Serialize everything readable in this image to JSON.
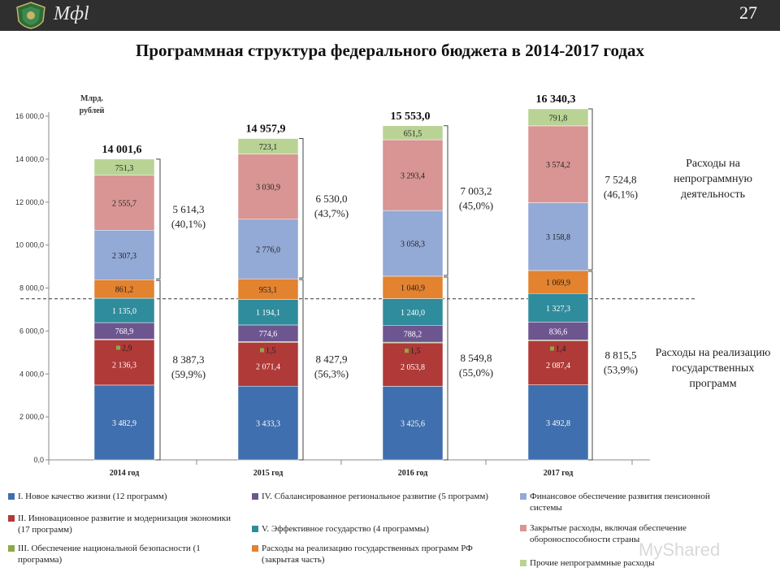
{
  "header": {
    "logo_text": "Мфl",
    "page_number": "27"
  },
  "title": "Программная структура федерального бюджета в 2014-2017 годах",
  "side_notes": {
    "nonprogram": "Расходы на непрограммную деятельность",
    "program": "Расходы на реализацию государственных программ"
  },
  "watermark": "MyShared",
  "chart_data": {
    "type": "bar",
    "stacked": true,
    "ylabel": "Млрд. рублей",
    "ylim": [
      0,
      16000
    ],
    "yticks": [
      "0,0",
      "2 000,0",
      "4 000,0",
      "6 000,0",
      "8 000,0",
      "10 000,0",
      "12 000,0",
      "14 000,0",
      "16 000,0"
    ],
    "ytick_values": [
      0,
      2000,
      4000,
      6000,
      8000,
      10000,
      12000,
      14000,
      16000
    ],
    "categories": [
      "2014 год",
      "2015 год",
      "2016 год",
      "2017 год"
    ],
    "totals": [
      "14 001,6",
      "14 957,9",
      "15 553,0",
      "16 340,3"
    ],
    "series": [
      {
        "name": "I. Новое качество жизни (12 программ)",
        "color": "#3f6fae",
        "values": [
          3482.9,
          3433.3,
          3425.6,
          3492.8
        ],
        "labels": [
          "3 482,9",
          "3 433,3",
          "3 425,6",
          "3 492,8"
        ]
      },
      {
        "name": "II. Инновационное развитие и модернизация экономики (17 программ)",
        "color": "#b03a38",
        "values": [
          2136.3,
          2071.4,
          2053.8,
          2087.4
        ],
        "labels": [
          "2 136,3",
          "2 071,4",
          "2 053,8",
          "2 087,4"
        ]
      },
      {
        "name": "III. Обеспечение национальной безопасности (1 программа)",
        "color": "#8caa45",
        "values": [
          2.9,
          1.5,
          1.5,
          1.4
        ],
        "labels": [
          "2,9",
          "1,5",
          "1,5",
          "1,4"
        ]
      },
      {
        "name": "IV. Сбалансированное региональное развитие (5 программ)",
        "color": "#6d5690",
        "values": [
          768.9,
          774.6,
          788.2,
          836.6
        ],
        "labels": [
          "768,9",
          "774,6",
          "788,2",
          "836,6"
        ]
      },
      {
        "name": "V. Эффективное государство (4 программы)",
        "color": "#2f8c9c",
        "values": [
          1135.0,
          1194.1,
          1240.0,
          1327.3
        ],
        "labels": [
          "1 135,0",
          "1 194,1",
          "1 240,0",
          "1 327,3"
        ]
      },
      {
        "name": "Расходы на реализацию государственных программ РФ (закрытая часть)",
        "color": "#e3822f",
        "values": [
          861.2,
          953.1,
          1040.9,
          1069.9
        ],
        "labels": [
          "861,2",
          "953,1",
          "1 040,9",
          "1 069,9"
        ]
      },
      {
        "name": "Финансовое обеспечение развития пенсионной системы",
        "color": "#93a9d6",
        "values": [
          2307.3,
          2776.0,
          3058.3,
          3158.8
        ],
        "labels": [
          "2 307,3",
          "2 776,0",
          "3 058,3",
          "3 158,8"
        ]
      },
      {
        "name": "Закрытые расходы, включая обеспечение обороноспособности страны",
        "color": "#d89593",
        "values": [
          2555.7,
          3030.9,
          3293.4,
          3574.2
        ],
        "labels": [
          "2 555,7",
          "3 030,9",
          "3 293,4",
          "3 574,2"
        ]
      },
      {
        "name": "Прочие непрограммные расходы",
        "color": "#b9d395",
        "values": [
          751.3,
          723.1,
          651.5,
          791.8
        ],
        "labels": [
          "751,3",
          "723,1",
          "651,5",
          "791,8"
        ]
      }
    ],
    "program_totals": [
      {
        "value": "8 387,3",
        "share": "(59,9%)"
      },
      {
        "value": "8 427,9",
        "share": "(56,3%)"
      },
      {
        "value": "8 549,8",
        "share": "(55,0%)"
      },
      {
        "value": "8 815,5",
        "share": "(53,9%)"
      }
    ],
    "nonprogram_totals": [
      {
        "value": "5 614,3",
        "share": "(40,1%)"
      },
      {
        "value": "6 530,0",
        "share": "(43,7%)"
      },
      {
        "value": "7 003,2",
        "share": "(45,0%)"
      },
      {
        "value": "7 524,8",
        "share": "(46,1%)"
      }
    ],
    "grid": false,
    "legend_position": "bottom"
  }
}
